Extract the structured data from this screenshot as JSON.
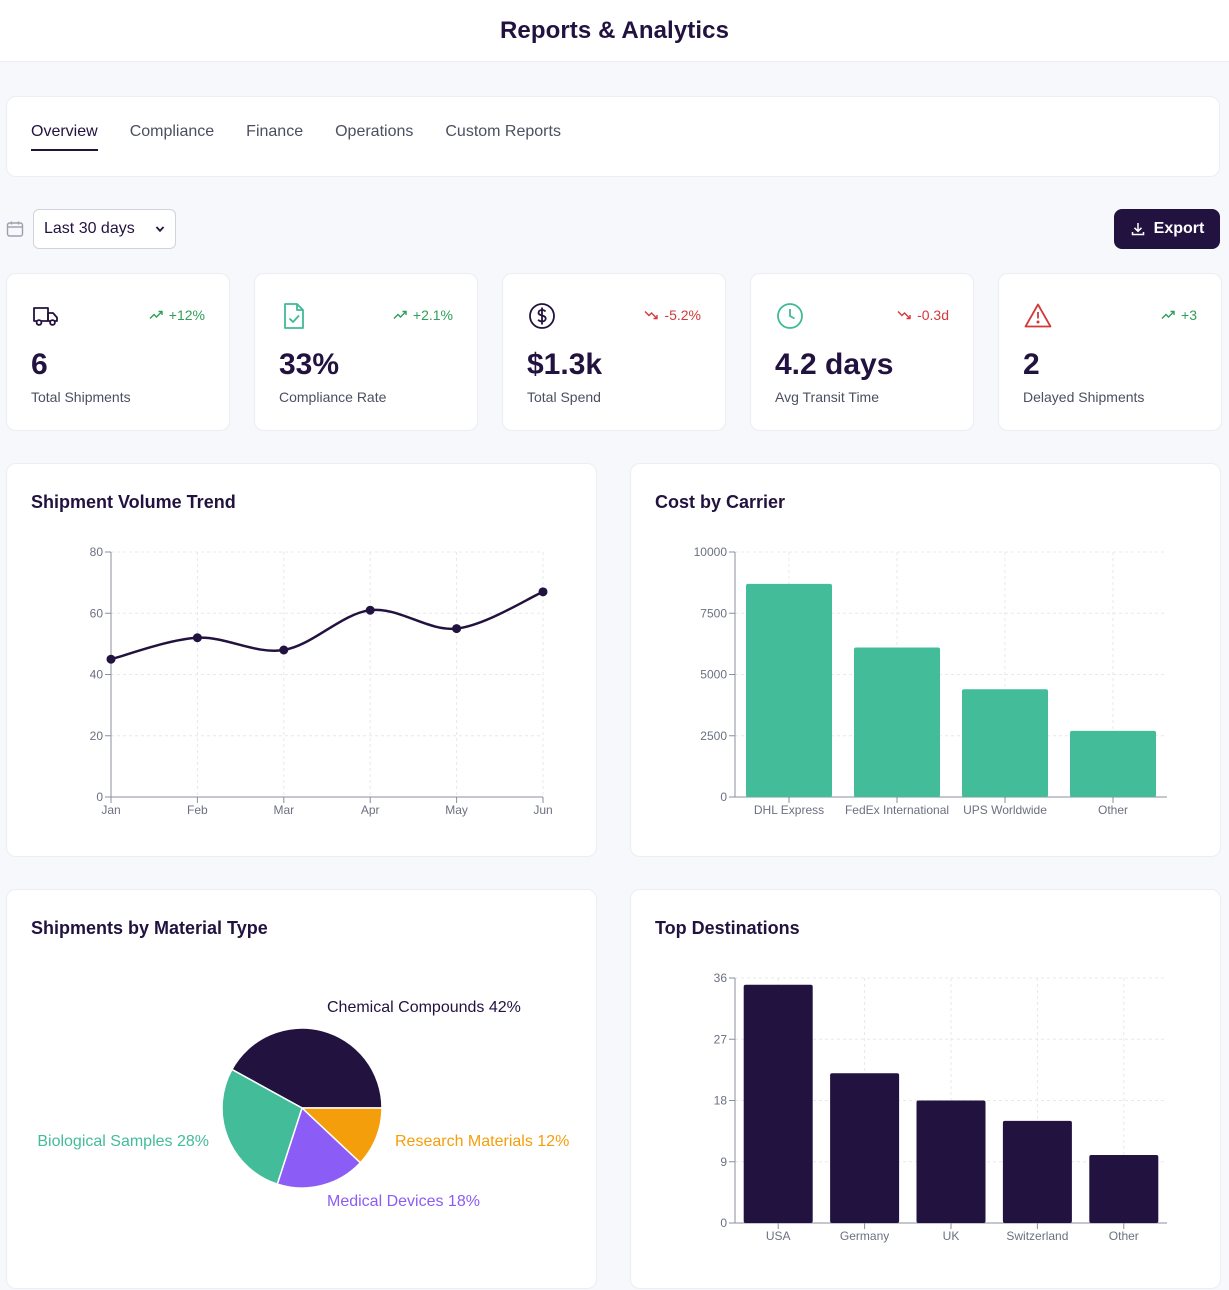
{
  "header": {
    "title": "Reports & Analytics"
  },
  "tabs": [
    {
      "label": "Overview",
      "active": true
    },
    {
      "label": "Compliance",
      "active": false
    },
    {
      "label": "Finance",
      "active": false
    },
    {
      "label": "Operations",
      "active": false
    },
    {
      "label": "Custom Reports",
      "active": false
    }
  ],
  "filter": {
    "date_range": "Last 30 days",
    "icon": "calendar-icon"
  },
  "export": {
    "label": "Export",
    "icon": "download-icon"
  },
  "kpis": [
    {
      "icon": "truck-icon",
      "icon_color": "#22123f",
      "trend": "+12%",
      "direction": "up",
      "value": "6",
      "label": "Total Shipments"
    },
    {
      "icon": "file-check-icon",
      "icon_color": "#3fba97",
      "trend": "+2.1%",
      "direction": "up",
      "value": "33%",
      "label": "Compliance Rate"
    },
    {
      "icon": "dollar-icon",
      "icon_color": "#22123f",
      "trend": "-5.2%",
      "direction": "down",
      "value": "$1.3k",
      "label": "Total Spend"
    },
    {
      "icon": "clock-icon",
      "icon_color": "#3fba97",
      "trend": "-0.3d",
      "direction": "down",
      "value": "4.2 days",
      "label": "Avg Transit Time"
    },
    {
      "icon": "alert-triangle-icon",
      "icon_color": "#d23a3a",
      "trend": "+3",
      "direction": "up",
      "value": "2",
      "label": "Delayed Shipments"
    }
  ],
  "colors": {
    "primary": "#22123f",
    "teal": "#43bc9a",
    "purple": "#8b5cf6",
    "orange": "#f59e0b",
    "up": "#2f9e57",
    "down": "#d23a3a"
  },
  "chart_data": [
    {
      "type": "line",
      "title": "Shipment Volume Trend",
      "categories": [
        "Jan",
        "Feb",
        "Mar",
        "Apr",
        "May",
        "Jun"
      ],
      "values": [
        45,
        52,
        48,
        61,
        55,
        67
      ],
      "ylim": [
        0,
        80
      ],
      "yticks": [
        0,
        20,
        40,
        60,
        80
      ],
      "grid": true
    },
    {
      "type": "bar",
      "title": "Cost by Carrier",
      "categories": [
        "DHL Express",
        "FedEx International",
        "UPS Worldwide",
        "Other"
      ],
      "values": [
        8700,
        6100,
        4400,
        2700
      ],
      "ylim": [
        0,
        10000
      ],
      "yticks": [
        0,
        2500,
        5000,
        7500,
        10000
      ],
      "color": "#43bc9a",
      "grid": true
    },
    {
      "type": "pie",
      "title": "Shipments by Material Type",
      "slices": [
        {
          "name": "Chemical Compounds",
          "value": 42,
          "label": "Chemical Compounds 42%",
          "color": "#22123f"
        },
        {
          "name": "Research Materials",
          "value": 12,
          "label": "Research Materials 12%",
          "color": "#f59e0b"
        },
        {
          "name": "Medical Devices",
          "value": 18,
          "label": "Medical Devices 18%",
          "color": "#8b5cf6"
        },
        {
          "name": "Biological Samples",
          "value": 28,
          "label": "Biological Samples 28%",
          "color": "#43bc9a"
        }
      ]
    },
    {
      "type": "bar",
      "title": "Top Destinations",
      "categories": [
        "USA",
        "Germany",
        "UK",
        "Switzerland",
        "Other"
      ],
      "values": [
        35,
        22,
        18,
        15,
        10
      ],
      "ylim": [
        0,
        36
      ],
      "yticks": [
        0,
        9,
        18,
        27,
        36
      ],
      "color": "#22123f",
      "grid": true
    }
  ]
}
